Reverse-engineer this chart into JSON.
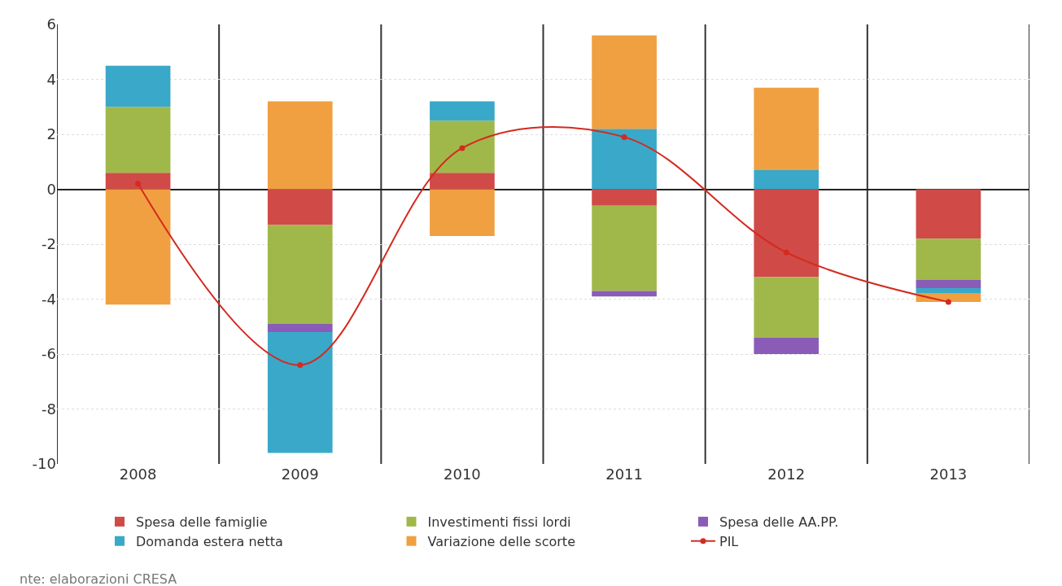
{
  "chart_data": {
    "type": "bar",
    "stacked": true,
    "categories": [
      "2008",
      "2009",
      "2010",
      "2011",
      "2012",
      "2013"
    ],
    "series": [
      {
        "name": "Spesa delle famiglie",
        "color": "#d04a48",
        "values": [
          0.6,
          -1.3,
          0.6,
          -0.6,
          -3.2,
          -1.8
        ]
      },
      {
        "name": "Investimenti fissi lordi",
        "color": "#a0b84a",
        "values": [
          2.4,
          -3.6,
          1.9,
          -3.1,
          -2.2,
          -1.5
        ]
      },
      {
        "name": "Spesa delle AA.PP.",
        "color": "#8a5cb8",
        "values": [
          null,
          -0.3,
          null,
          -0.2,
          -0.6,
          -0.3
        ]
      },
      {
        "name": "Domanda estera netta",
        "color": "#3aa8c8",
        "values": [
          1.5,
          -4.4,
          0.7,
          2.2,
          0.7,
          -0.2
        ]
      },
      {
        "name": "Variazione delle scorte",
        "color": "#f0a040",
        "values": [
          -4.2,
          3.2,
          -1.7,
          3.4,
          3.0,
          -0.3
        ]
      },
      {
        "name": "PIL",
        "type": "line",
        "color": "#d42a20",
        "marker": "circle",
        "values": [
          0.2,
          -6.4,
          1.5,
          1.9,
          -2.3,
          -4.1
        ]
      }
    ],
    "ylim": [
      -10,
      6
    ],
    "yticks": [
      6,
      4,
      2,
      0,
      -2,
      -4,
      -6,
      -8,
      -10
    ],
    "grid": true,
    "legend": "bottom",
    "annotations": [
      "nte: elaborazioni CRESA"
    ]
  }
}
